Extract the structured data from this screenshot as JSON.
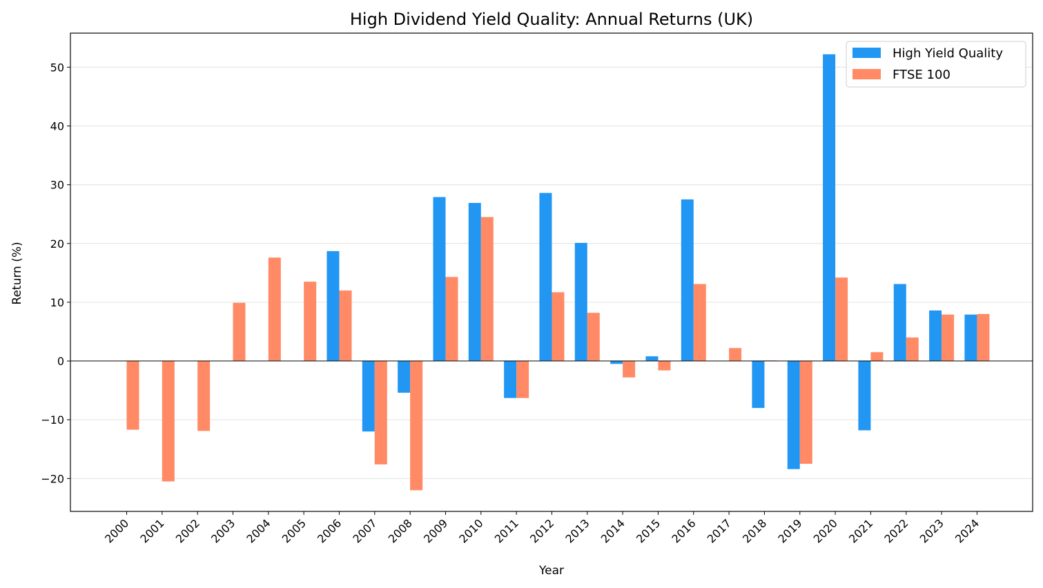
{
  "chart_data": {
    "type": "bar",
    "title": "High Dividend Yield Quality: Annual Returns (UK)",
    "xlabel": "Year",
    "ylabel": "Return (%)",
    "ylim": [
      -25.6,
      55.8
    ],
    "yticks": [
      -20,
      -10,
      0,
      10,
      20,
      30,
      40,
      50
    ],
    "grid": "y",
    "legend_position": "top-right",
    "categories": [
      "2000",
      "2001",
      "2002",
      "2003",
      "2004",
      "2005",
      "2006",
      "2007",
      "2008",
      "2009",
      "2010",
      "2011",
      "2012",
      "2013",
      "2014",
      "2015",
      "2016",
      "2017",
      "2018",
      "2019",
      "2020",
      "2021",
      "2022",
      "2023",
      "2024"
    ],
    "series": [
      {
        "name": "High Yield Quality",
        "color": "#2196f3",
        "values": [
          null,
          null,
          null,
          null,
          null,
          null,
          18.7,
          -12.0,
          -5.4,
          27.9,
          26.9,
          -6.3,
          28.6,
          20.1,
          -0.5,
          0.8,
          27.5,
          null,
          -8.0,
          -18.4,
          52.2,
          -11.8,
          13.1,
          8.6,
          7.9
        ]
      },
      {
        "name": "FTSE 100",
        "color": "#ff8a65",
        "values": [
          -11.7,
          -20.5,
          -11.9,
          9.9,
          17.6,
          13.5,
          12.0,
          -17.6,
          -22.0,
          14.3,
          24.5,
          -6.3,
          11.7,
          8.2,
          -2.8,
          -1.6,
          13.1,
          2.2,
          0.1,
          -17.5,
          14.2,
          1.5,
          4.0,
          7.9,
          8.0
        ]
      }
    ]
  }
}
